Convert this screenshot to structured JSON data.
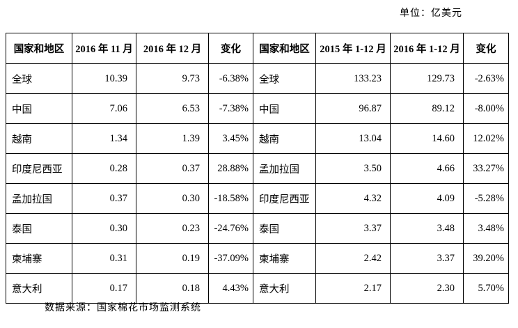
{
  "unit_note": "单位：亿美元",
  "source_note": "数据来源：国家棉花市场监测系统",
  "table": {
    "headers": [
      "国家和地区",
      "2016 年 11 月",
      "2016 年 12 月",
      "变化",
      "国家和地区",
      "2015 年 1-12 月",
      "2016 年 1-12 月",
      "变化"
    ],
    "rows": [
      [
        "全球",
        "10.39",
        "9.73",
        "-6.38%",
        "全球",
        "133.23",
        "129.73",
        "-2.63%"
      ],
      [
        "中国",
        "7.06",
        "6.53",
        "-7.38%",
        "中国",
        "96.87",
        "89.12",
        "-8.00%"
      ],
      [
        "越南",
        "1.34",
        "1.39",
        "3.45%",
        "越南",
        "13.04",
        "14.60",
        "12.02%"
      ],
      [
        "印度尼西亚",
        "0.28",
        "0.37",
        "28.88%",
        "孟加拉国",
        "3.50",
        "4.66",
        "33.27%"
      ],
      [
        "孟加拉国",
        "0.37",
        "0.30",
        "-18.58%",
        "印度尼西亚",
        "4.32",
        "4.09",
        "-5.28%"
      ],
      [
        "泰国",
        "0.30",
        "0.23",
        "-24.76%",
        "泰国",
        "3.37",
        "3.48",
        "3.48%"
      ],
      [
        "柬埔寨",
        "0.31",
        "0.19",
        "-37.09%",
        "柬埔寨",
        "2.42",
        "3.37",
        "39.20%"
      ],
      [
        "意大利",
        "0.17",
        "0.18",
        "4.43%",
        "意大利",
        "2.17",
        "2.30",
        "5.70%"
      ]
    ]
  }
}
